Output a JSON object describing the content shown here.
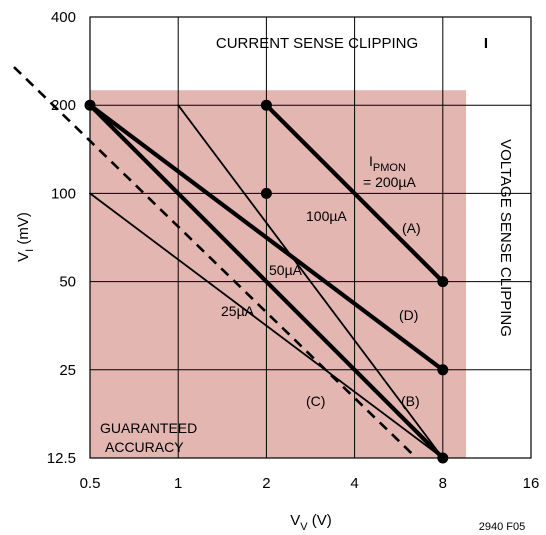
{
  "chart_data": {
    "type": "line",
    "xscale": "log2",
    "yscale": "log2",
    "xlim": [
      0.5,
      16
    ],
    "ylim": [
      12.5,
      400
    ],
    "xticks": [
      "0.5",
      "1",
      "2",
      "4",
      "8",
      "16"
    ],
    "yticks": [
      "12.5",
      "25",
      "50",
      "100",
      "200",
      "400"
    ],
    "xlabel": "V",
    "xlabel_sub": "V",
    "xlabel_unit": " (V)",
    "ylabel": "V",
    "ylabel_sub": "I",
    "ylabel_unit": " (mV)",
    "grid": true,
    "panel_label": "I",
    "figure_id": "2940 F05",
    "shade_color": "#e3b6b1",
    "shaded_region": {
      "x_from": 0.5,
      "x_to": 8,
      "y_from": 12.5,
      "y_to": 200,
      "extends_beyond_to": [
        9.6,
        225
      ]
    },
    "series": [
      {
        "label": "(A)",
        "x": [
          2,
          8
        ],
        "y": [
          200,
          50
        ],
        "bold": true
      },
      {
        "label": "(D)",
        "x": [
          0.5,
          8
        ],
        "y": [
          200,
          25
        ],
        "bold": true
      },
      {
        "label": "(B)",
        "x": [
          0.5,
          8
        ],
        "y": [
          200,
          12.5
        ],
        "bold": true
      },
      {
        "label": "(C)",
        "x": [
          1,
          8
        ],
        "y": [
          200,
          12.5
        ],
        "bold": false
      },
      {
        "label": "",
        "x": [
          0.5,
          8
        ],
        "y": [
          100,
          12.5
        ],
        "bold": false
      }
    ],
    "points": [
      {
        "x": 0.5,
        "y": 200
      },
      {
        "x": 2,
        "y": 200
      },
      {
        "x": 2,
        "y": 100
      },
      {
        "x": 8,
        "y": 50
      },
      {
        "x": 8,
        "y": 25
      },
      {
        "x": 8,
        "y": 12.5
      }
    ],
    "guaranteed_accuracy_boundary": {
      "x": [
        0.275,
        6.5
      ],
      "y": [
        270,
        12.5
      ]
    },
    "annotations": {
      "current_clip": "CURRENT SENSE CLIPPING",
      "voltage_clip": "VOLTAGE SENSE CLIPPING",
      "ipmon_main": "I",
      "ipmon_sub": "PMON",
      "ipmon_value": "= 200µA",
      "l100": "100µA",
      "l50": "50µA",
      "l25": "25µA",
      "guaranteed_line1": "GUARANTEED",
      "guaranteed_line2": "ACCURACY"
    }
  }
}
